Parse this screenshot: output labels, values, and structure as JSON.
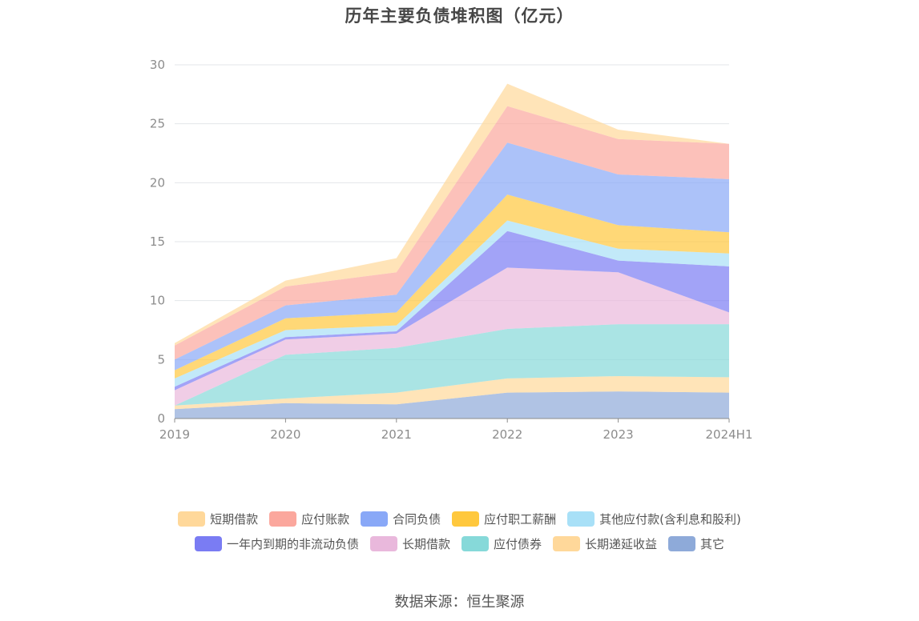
{
  "chart_data": {
    "type": "area",
    "title": "历年主要负债堆积图（亿元）",
    "source": "数据来源：恒生聚源",
    "categories": [
      "2019",
      "2020",
      "2021",
      "2022",
      "2023",
      "2024H1"
    ],
    "ylim": [
      0,
      30
    ],
    "yticks": [
      "0",
      "5",
      "10",
      "15",
      "20",
      "25",
      "30"
    ],
    "grid": true,
    "legend_position": "bottom",
    "series": [
      {
        "name": "其它",
        "color": "#8eaad9",
        "values": [
          0.8,
          1.3,
          1.2,
          2.2,
          2.3,
          2.2
        ]
      },
      {
        "name": "长期递延收益",
        "color": "#ffd89a",
        "values": [
          0.3,
          0.4,
          1.0,
          1.2,
          1.3,
          1.3
        ]
      },
      {
        "name": "应付债券",
        "color": "#86d9d9",
        "values": [
          0.0,
          3.7,
          3.8,
          4.2,
          4.4,
          4.5
        ]
      },
      {
        "name": "长期借款",
        "color": "#e9b8dc",
        "values": [
          1.3,
          1.3,
          1.2,
          5.2,
          4.4,
          1.0
        ]
      },
      {
        "name": "一年内到期的非流动负债",
        "color": "#7a7cf3",
        "values": [
          0.3,
          0.2,
          0.2,
          3.1,
          1.0,
          3.9
        ]
      },
      {
        "name": "其他应付款(含利息和股利)",
        "color": "#a8e0f7",
        "values": [
          0.7,
          0.6,
          0.5,
          0.9,
          1.0,
          1.1
        ]
      },
      {
        "name": "应付职工薪酬",
        "color": "#ffc83d",
        "values": [
          0.7,
          1.0,
          1.1,
          2.2,
          2.0,
          1.8
        ]
      },
      {
        "name": "合同负债",
        "color": "#89a8f7",
        "values": [
          0.9,
          1.1,
          1.5,
          4.4,
          4.3,
          4.5
        ]
      },
      {
        "name": "应付账款",
        "color": "#fba79d",
        "values": [
          1.2,
          1.6,
          1.9,
          3.1,
          3.0,
          3.0
        ]
      },
      {
        "name": "短期借款",
        "color": "#ffd89a",
        "values": [
          0.2,
          0.5,
          1.2,
          1.9,
          0.8,
          0.0
        ]
      }
    ],
    "legend_rows": [
      [
        "短期借款",
        "应付账款",
        "合同负债",
        "应付职工薪酬",
        "其他应付款(含利息和股利)"
      ],
      [
        "一年内到期的非流动负债",
        "长期借款",
        "应付债券",
        "长期递延收益",
        "其它"
      ]
    ]
  }
}
